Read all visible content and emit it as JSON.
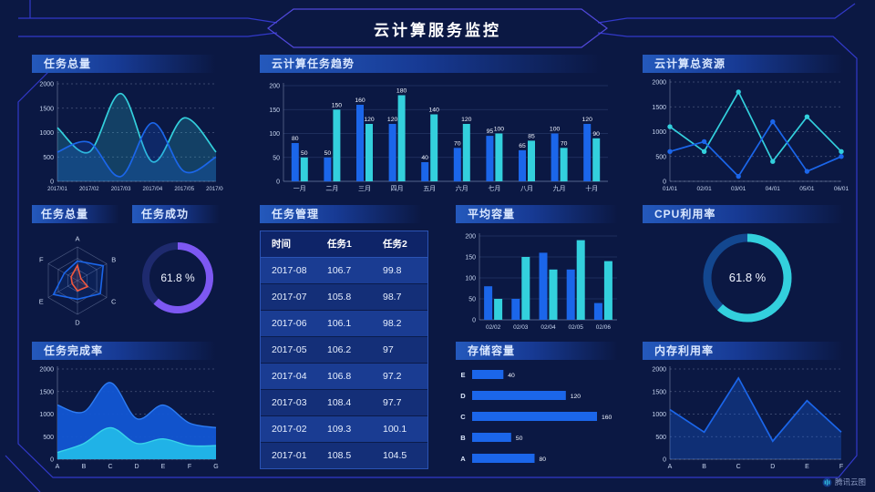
{
  "header": {
    "title": "云计算服务监控"
  },
  "watermark": {
    "label": "腾讯云图"
  },
  "colors": {
    "blue": "#1b66ea",
    "cyan": "#33d0dd",
    "area_blue": "#1256d4",
    "area_cyan": "#22b7e8",
    "purple": "#7d58f2",
    "red": "#f2583e",
    "purple_track": "#1e2a6e",
    "cyan_track": "#13478f",
    "axis_text": "#c8d6f0",
    "grid_dashed": "rgba(205,218,242,0.32)",
    "grid_solid": "rgba(130,160,225,0.22)",
    "axis_line": "rgba(190,205,235,0.45)",
    "bar_label": "#f2f6ff",
    "frame": "#3239c9",
    "frame_accent": "#5149dc"
  },
  "chart_data": [
    {
      "id": "chart-tasks-total",
      "type": "area",
      "title": "任务总量",
      "x": [
        "2017/01",
        "2017/02",
        "2017/03",
        "2017/04",
        "2017/05",
        "2017/06"
      ],
      "series": [
        {
          "color": "cyan",
          "area": true,
          "values": [
            1100,
            600,
            1800,
            400,
            1300,
            600
          ]
        },
        {
          "color": "blue",
          "area": true,
          "values": [
            600,
            800,
            100,
            1200,
            200,
            500
          ]
        }
      ],
      "ylim": [
        0,
        2000
      ],
      "yticks": [
        0,
        500,
        1000,
        1500,
        2000
      ],
      "smooth": true,
      "grid": "dashed"
    },
    {
      "id": "chart-trend",
      "type": "bar",
      "title": "云计算任务趋势",
      "categories": [
        "一月",
        "二月",
        "三月",
        "四月",
        "五月",
        "六月",
        "七月",
        "八月",
        "九月",
        "十月"
      ],
      "series": [
        {
          "color": "blue",
          "values": [
            80,
            50,
            160,
            120,
            40,
            70,
            95,
            65,
            100,
            120
          ]
        },
        {
          "color": "cyan",
          "values": [
            50,
            150,
            120,
            180,
            140,
            120,
            100,
            85,
            70,
            90
          ]
        }
      ],
      "ylim": [
        0,
        200
      ],
      "yticks": [
        0,
        50,
        100,
        150,
        200
      ],
      "value_labels": true,
      "grid": "solid"
    },
    {
      "id": "chart-resources",
      "type": "line",
      "title": "云计算总资源",
      "x": [
        "01/01",
        "02/01",
        "03/01",
        "04/01",
        "05/01",
        "06/01"
      ],
      "series": [
        {
          "color": "cyan",
          "values": [
            1100,
            600,
            1800,
            400,
            1300,
            600
          ]
        },
        {
          "color": "blue",
          "values": [
            600,
            800,
            100,
            1200,
            200,
            500
          ]
        }
      ],
      "ylim": [
        0,
        2000
      ],
      "yticks": [
        0,
        500,
        1000,
        1500,
        2000
      ],
      "markers": true,
      "grid": "dashed"
    },
    {
      "id": "chart-radar",
      "type": "radar",
      "title": "任务总量",
      "axes": [
        "A",
        "B",
        "C",
        "D",
        "E",
        "F"
      ],
      "max": 100,
      "series": [
        {
          "color": "blue",
          "values": [
            58,
            88,
            78,
            55,
            82,
            45
          ]
        },
        {
          "color": "red",
          "values": [
            45,
            12,
            35,
            30,
            18,
            22
          ]
        }
      ]
    },
    {
      "id": "gauge-success",
      "type": "donut",
      "title": "任务成功",
      "value": 61.8,
      "unit": "%",
      "color": "purple",
      "track": "purple_track"
    },
    {
      "id": "mgmt-table-data",
      "type": "table",
      "title": "任务管理",
      "columns": [
        "时间",
        "任务1",
        "任务2"
      ],
      "rows": [
        [
          "2017-08",
          "106.7",
          "99.8"
        ],
        [
          "2017-07",
          "105.8",
          "98.7"
        ],
        [
          "2017-06",
          "106.1",
          "98.2"
        ],
        [
          "2017-05",
          "106.2",
          "97"
        ],
        [
          "2017-04",
          "106.8",
          "97.2"
        ],
        [
          "2017-03",
          "108.4",
          "97.7"
        ],
        [
          "2017-02",
          "109.3",
          "100.1"
        ],
        [
          "2017-01",
          "108.5",
          "104.5"
        ]
      ]
    },
    {
      "id": "chart-avg-capacity",
      "type": "bar",
      "title": "平均容量",
      "categories": [
        "02/02",
        "02/03",
        "02/04",
        "02/05",
        "02/06"
      ],
      "series": [
        {
          "color": "blue",
          "values": [
            80,
            50,
            160,
            120,
            40
          ]
        },
        {
          "color": "cyan",
          "values": [
            50,
            150,
            120,
            190,
            140
          ]
        }
      ],
      "ylim": [
        0,
        200
      ],
      "yticks": [
        0,
        50,
        100,
        150,
        200
      ],
      "value_labels": false,
      "grid": "solid"
    },
    {
      "id": "gauge-cpu",
      "type": "donut",
      "title": "CPU利用率",
      "value": 61.8,
      "unit": "%",
      "color": "cyan",
      "track": "cyan_track"
    },
    {
      "id": "chart-completion",
      "type": "stacked-area",
      "title": "任务完成率",
      "x": [
        "A",
        "B",
        "C",
        "D",
        "E",
        "F",
        "G"
      ],
      "series": [
        {
          "color": "area_blue",
          "edge": "#2d7cf4",
          "values": [
            1200,
            1050,
            1700,
            900,
            1200,
            800,
            700
          ]
        },
        {
          "color": "area_cyan",
          "edge": "#38d4ea",
          "values": [
            150,
            350,
            700,
            350,
            450,
            300,
            300
          ]
        }
      ],
      "ylim": [
        0,
        2000
      ],
      "yticks": [
        0,
        500,
        1000,
        1500,
        2000
      ],
      "grid": "dashed"
    },
    {
      "id": "chart-storage",
      "type": "hbar",
      "title": "存储容量",
      "categories": [
        "E",
        "D",
        "C",
        "B",
        "A"
      ],
      "values": [
        40,
        120,
        160,
        50,
        80
      ],
      "xmax": 160,
      "value_labels": true
    },
    {
      "id": "chart-memory",
      "type": "line",
      "title": "内存利用率",
      "x": [
        "A",
        "B",
        "C",
        "D",
        "E",
        "F"
      ],
      "series": [
        {
          "color": "blue",
          "area": true,
          "values": [
            1100,
            600,
            1800,
            400,
            1300,
            600
          ]
        }
      ],
      "ylim": [
        0,
        2000
      ],
      "yticks": [
        0,
        500,
        1000,
        1500,
        2000
      ],
      "markers": false,
      "grid": "dashed"
    }
  ]
}
